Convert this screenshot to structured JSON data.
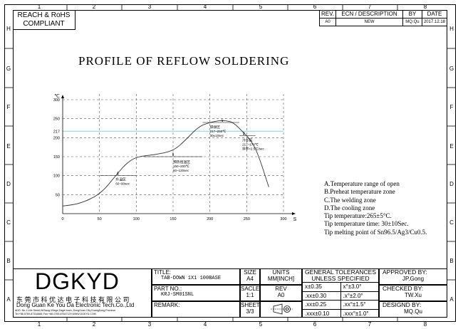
{
  "compliance": {
    "line1": "REACH & RoHS",
    "line2": "COMPLIANT"
  },
  "ruler": {
    "columns": [
      "1",
      "2",
      "3",
      "4",
      "5",
      "6",
      "7",
      "8"
    ],
    "rows": [
      "H",
      "G",
      "F",
      "E",
      "D",
      "C",
      "B",
      "A"
    ]
  },
  "revision": {
    "headers": {
      "rev": "REV.",
      "ecn": "ECN / DESCRIPTION",
      "by": "BY",
      "date": "DATE"
    },
    "row": {
      "rev": "A0",
      "ecn": "NEW",
      "by": "MQ.Qu",
      "date": "2017.12.18"
    }
  },
  "chart_title": "PROFILE OF REFLOW SOLDERING",
  "chart_data": {
    "type": "line",
    "title": "PROFILE OF REFLOW SOLDERING",
    "ylabel": "℃",
    "xlabel": "S",
    "xlim": [
      0,
      300
    ],
    "ylim": [
      0,
      300
    ],
    "x_ticks": [
      "0",
      "50",
      "100",
      "150",
      "200",
      "250",
      "300"
    ],
    "y_ticks": [
      "50",
      "100",
      "150",
      "200",
      "217",
      "250",
      "300"
    ],
    "x_tick_values": [
      0,
      50,
      100,
      150,
      200,
      250,
      300
    ],
    "y_tick_values": [
      50,
      100,
      150,
      200,
      217,
      250,
      300
    ],
    "grid": true,
    "reference_lines": [
      217,
      250
    ],
    "series": [
      {
        "x": [
          0,
          20,
          40,
          55,
          70,
          85,
          100,
          125,
          150,
          165,
          185,
          200,
          212,
          222,
          232,
          245,
          255,
          265,
          280
        ],
        "y": [
          20,
          25,
          40,
          60,
          95,
          130,
          150,
          155,
          165,
          190,
          230,
          240,
          245,
          245,
          240,
          215,
          195,
          160,
          70
        ]
      }
    ],
    "zones": [
      {
        "letter": "A",
        "name": "升温区",
        "desc": "60~90sec"
      },
      {
        "letter": "B",
        "name": "预热恒温区",
        "desc1": "150~200℃",
        "desc2": "60~120sec"
      },
      {
        "letter": "C",
        "name": "焊接区",
        "desc1": "217~250℃",
        "desc2": "30±10sec"
      },
      {
        "letter": "D",
        "name": "冷却区",
        "desc1": "217~170℃",
        "desc2": "斜率>2.5℃/sec"
      }
    ]
  },
  "notes": [
    "A.Temperature range of open",
    "B.Preheat temperature zone",
    "C.The welding zone",
    "D.The cooling zone",
    "Tip temperature:265±5°C.",
    "Tip temperature time: 30±10Sec.",
    "Tip melting point of Sn96.5/Ag3/Cu0.5."
  ],
  "company": {
    "logo": "DGKYD",
    "name_cn": "东 莞 市 科 优 达 电 子 科 技 有 限 公 司",
    "name_en": "Dong Guan Ke You Da Electronic Tech.Co.,Ltd",
    "address": "ADD: No.1 Lilie Street,WiJiang Village,Dagei town, DongGuan City,GuangDong Province",
    "contact": "Tel:+86-0769-87334666; Fax:+86-0769-87647129   WWW.DGKYD.COM"
  },
  "title_block": {
    "title_label": "TITLE:",
    "title_value": "TAB-DOWN 1X1 100BASE",
    "part_label": "PART NO.:",
    "part_value": "KRJ-SM01SNL",
    "remark_label": "REMARK:",
    "size_label": "SIZE",
    "size_value": "A4",
    "units_label": "UNITS",
    "units_value": "MM[INCH]",
    "scale_label": "SACLE",
    "scale_value": "1:1",
    "rev_label": "REV",
    "rev_value": "A0",
    "sheet_label": "SHEET",
    "sheet_value": "3/3",
    "tolerances_title1": "GENERAL TOLERANCES",
    "tolerances_title2": "UNLESS SPECIFIED",
    "tolerances": [
      [
        "x±0.35",
        "x°±3.0°"
      ],
      [
        ".xx±0.30",
        ".x°±2.0°"
      ],
      [
        ".xx±0.25",
        ".xx°±1.5°"
      ],
      [
        ".xxx±0.10",
        ".xxx°±1.0°"
      ]
    ],
    "approved_label": "APPROVED BY:",
    "approved_value": "JP.Gong",
    "checked_label": "CHECKED BY:",
    "checked_value": "TW.Xu",
    "designed_label": "DESIGND BY:",
    "designed_value": "MQ.Qu"
  }
}
